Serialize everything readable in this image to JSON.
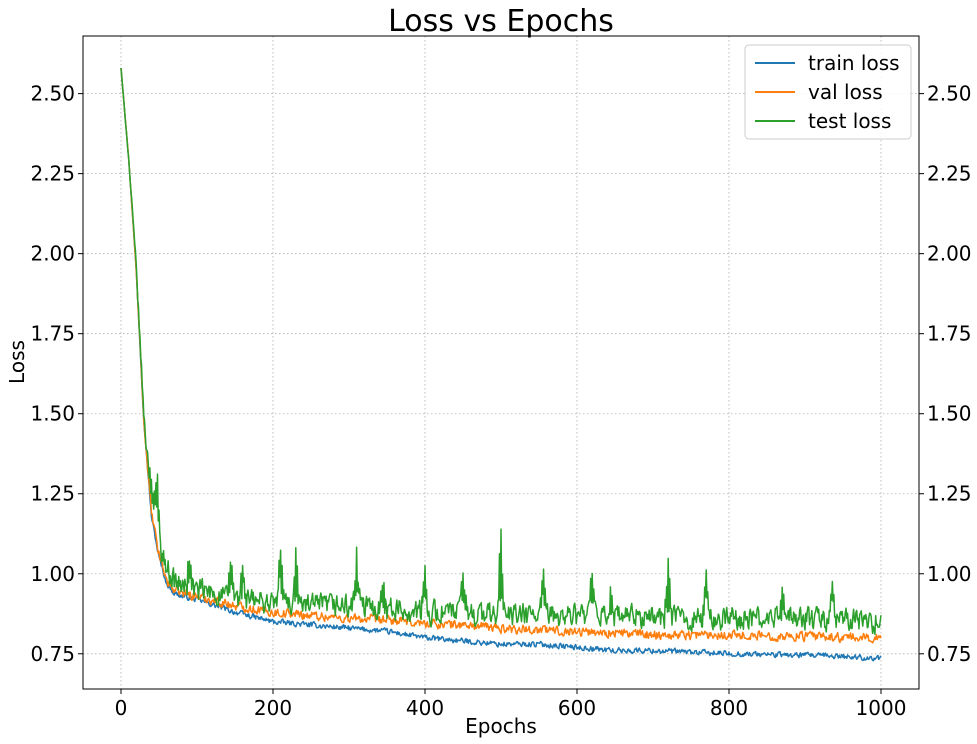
{
  "chart_data": {
    "type": "line",
    "title": "Loss vs Epochs",
    "xlabel": "Epochs",
    "ylabel": "Loss",
    "xlim": [
      -50,
      1050
    ],
    "ylim": [
      0.64,
      2.68
    ],
    "x_ticks": [
      0,
      200,
      400,
      600,
      800,
      1000
    ],
    "y_ticks": [
      0.75,
      1.0,
      1.25,
      1.5,
      1.75,
      2.0,
      2.25,
      2.5
    ],
    "y_ticks_mirrored_right": true,
    "grid": true,
    "legend_position": "top-right",
    "series": [
      {
        "name": "train loss",
        "color": "#1f77b4",
        "noise_amplitude": 0.012,
        "points": [
          [
            0,
            2.58
          ],
          [
            10,
            2.3
          ],
          [
            20,
            1.95
          ],
          [
            30,
            1.48
          ],
          [
            40,
            1.18
          ],
          [
            50,
            1.05
          ],
          [
            60,
            0.97
          ],
          [
            70,
            0.94
          ],
          [
            80,
            0.93
          ],
          [
            100,
            0.92
          ],
          [
            150,
            0.88
          ],
          [
            200,
            0.85
          ],
          [
            250,
            0.84
          ],
          [
            300,
            0.83
          ],
          [
            350,
            0.82
          ],
          [
            400,
            0.8
          ],
          [
            450,
            0.79
          ],
          [
            500,
            0.78
          ],
          [
            550,
            0.78
          ],
          [
            600,
            0.77
          ],
          [
            650,
            0.76
          ],
          [
            700,
            0.76
          ],
          [
            750,
            0.755
          ],
          [
            800,
            0.75
          ],
          [
            850,
            0.748
          ],
          [
            900,
            0.745
          ],
          [
            950,
            0.742
          ],
          [
            1000,
            0.735
          ]
        ]
      },
      {
        "name": "val loss",
        "color": "#ff7f0e",
        "noise_amplitude": 0.02,
        "points": [
          [
            0,
            2.58
          ],
          [
            10,
            2.3
          ],
          [
            20,
            1.95
          ],
          [
            30,
            1.48
          ],
          [
            40,
            1.19
          ],
          [
            50,
            1.06
          ],
          [
            60,
            0.98
          ],
          [
            70,
            0.95
          ],
          [
            80,
            0.94
          ],
          [
            100,
            0.93
          ],
          [
            150,
            0.9
          ],
          [
            200,
            0.88
          ],
          [
            250,
            0.87
          ],
          [
            300,
            0.86
          ],
          [
            350,
            0.855
          ],
          [
            400,
            0.845
          ],
          [
            450,
            0.84
          ],
          [
            500,
            0.83
          ],
          [
            550,
            0.825
          ],
          [
            600,
            0.82
          ],
          [
            650,
            0.815
          ],
          [
            700,
            0.81
          ],
          [
            750,
            0.81
          ],
          [
            800,
            0.81
          ],
          [
            850,
            0.805
          ],
          [
            900,
            0.805
          ],
          [
            950,
            0.8
          ],
          [
            1000,
            0.8
          ]
        ]
      },
      {
        "name": "test loss",
        "color": "#2ca02c",
        "noise_amplitude": 0.05,
        "points": [
          [
            0,
            2.58
          ],
          [
            10,
            2.3
          ],
          [
            20,
            1.96
          ],
          [
            30,
            1.5
          ],
          [
            40,
            1.22
          ],
          [
            50,
            1.1
          ],
          [
            60,
            1.02
          ],
          [
            70,
            0.98
          ],
          [
            80,
            0.96
          ],
          [
            100,
            0.95
          ],
          [
            150,
            0.92
          ],
          [
            200,
            0.91
          ],
          [
            250,
            0.9
          ],
          [
            300,
            0.9
          ],
          [
            350,
            0.89
          ],
          [
            400,
            0.88
          ],
          [
            450,
            0.88
          ],
          [
            500,
            0.87
          ],
          [
            550,
            0.87
          ],
          [
            600,
            0.87
          ],
          [
            650,
            0.865
          ],
          [
            700,
            0.865
          ],
          [
            750,
            0.86
          ],
          [
            800,
            0.86
          ],
          [
            850,
            0.86
          ],
          [
            900,
            0.86
          ],
          [
            950,
            0.855
          ],
          [
            1000,
            0.85
          ]
        ],
        "spikes": [
          [
            40,
            1.32
          ],
          [
            48,
            1.32
          ],
          [
            90,
            1.06
          ],
          [
            145,
            1.06
          ],
          [
            160,
            1.03
          ],
          [
            210,
            1.09
          ],
          [
            230,
            1.08
          ],
          [
            310,
            1.06
          ],
          [
            345,
            1.02
          ],
          [
            400,
            1.0
          ],
          [
            450,
            1.02
          ],
          [
            500,
            1.13
          ],
          [
            555,
            1.0
          ],
          [
            620,
            1.0
          ],
          [
            645,
            0.97
          ],
          [
            720,
            1.05
          ],
          [
            770,
            1.0
          ],
          [
            870,
            0.97
          ],
          [
            935,
            0.97
          ]
        ]
      }
    ]
  }
}
